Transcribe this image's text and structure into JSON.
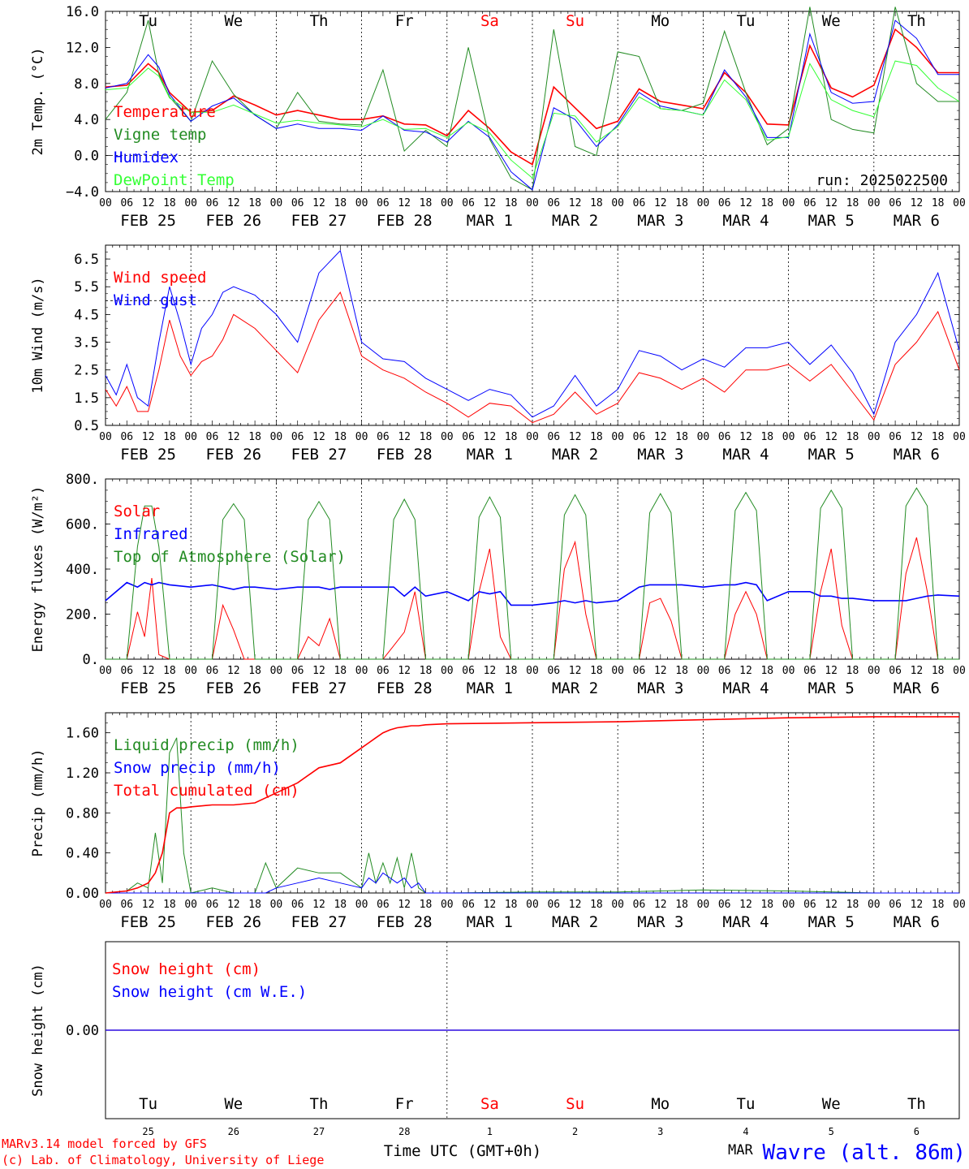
{
  "chart_data": [
    {
      "type": "line",
      "ylabel": "2m Temp. (°C)",
      "ylim": [
        -4,
        16
      ],
      "ytick_labels": [
        "16.0",
        "12.0",
        "8.0",
        "4.0",
        "0.0",
        "−4.0"
      ],
      "ytick_values": [
        16,
        12,
        8,
        4,
        0,
        -4
      ],
      "reference_line": 0,
      "annotation": "run: 2025022500",
      "x_hours": [
        0,
        6,
        12,
        15,
        18,
        24,
        30,
        36,
        42,
        48,
        54,
        60,
        66,
        72,
        78,
        84,
        90,
        96,
        102,
        108,
        114,
        120,
        126,
        132,
        138,
        144,
        150,
        156,
        162,
        168,
        174,
        180,
        186,
        192,
        198,
        204,
        210,
        216,
        222,
        228,
        234,
        240
      ],
      "series": [
        {
          "name": "Temperature",
          "color": "#ff0000",
          "width": 1.6,
          "values": [
            7.6,
            7.8,
            10.2,
            9.2,
            7.0,
            4.8,
            5.0,
            6.6,
            5.6,
            4.5,
            5.0,
            4.5,
            4.0,
            4.0,
            4.4,
            3.5,
            3.4,
            2.2,
            5.0,
            3.0,
            0.4,
            -1.0,
            7.6,
            5.3,
            3.0,
            3.8,
            7.4,
            6.0,
            5.6,
            5.2,
            9.2,
            7.0,
            3.5,
            3.4,
            12.2,
            7.5,
            6.5,
            7.8,
            14.0,
            12.0,
            9.2,
            9.2
          ]
        },
        {
          "name": "Vigne temp",
          "color": "#228b22",
          "width": 1,
          "values": [
            4.0,
            7.0,
            15.0,
            9.0,
            6.5,
            3.8,
            10.5,
            6.8,
            4.5,
            3.0,
            7.0,
            3.8,
            3.5,
            3.4,
            9.5,
            0.5,
            2.8,
            1.0,
            12.0,
            1.8,
            -2.5,
            -3.8,
            14.0,
            1.0,
            0.0,
            11.5,
            11.0,
            5.2,
            5.0,
            5.8,
            13.8,
            7.0,
            1.2,
            3.0,
            16.5,
            4.0,
            2.9,
            2.5,
            16.5,
            8.0,
            6.0,
            6.0
          ]
        },
        {
          "name": "Humidex",
          "color": "#0000ff",
          "width": 1,
          "values": [
            7.5,
            8.0,
            11.2,
            9.8,
            6.8,
            3.8,
            5.5,
            6.4,
            4.5,
            3.0,
            3.5,
            3.0,
            3.0,
            2.8,
            4.4,
            2.8,
            2.6,
            1.5,
            3.8,
            2.0,
            -1.8,
            -3.8,
            5.3,
            4.0,
            1.0,
            3.4,
            7.0,
            5.5,
            5.0,
            4.5,
            9.5,
            6.5,
            2.0,
            2.0,
            13.5,
            7.0,
            5.8,
            6.0,
            15.0,
            13.0,
            9.0,
            9.0
          ]
        },
        {
          "name": "DewPoint Temp",
          "color": "#33ff33",
          "width": 1,
          "values": [
            7.3,
            7.5,
            9.7,
            8.8,
            6.4,
            4.8,
            4.8,
            5.6,
            4.6,
            3.6,
            3.9,
            3.6,
            3.4,
            3.2,
            4.0,
            2.9,
            3.0,
            2.0,
            3.7,
            2.5,
            -0.5,
            -2.5,
            4.7,
            4.4,
            1.5,
            3.2,
            6.5,
            5.2,
            5.0,
            4.5,
            8.4,
            6.2,
            1.7,
            2.1,
            10.2,
            6.2,
            5.0,
            4.3,
            10.5,
            10.0,
            7.5,
            6.0
          ]
        }
      ]
    },
    {
      "type": "line",
      "ylabel": "10m Wind (m/s)",
      "ylim": [
        0.5,
        7.0
      ],
      "ytick_labels": [
        "6.5",
        "5.5",
        "4.5",
        "3.5",
        "2.5",
        "1.5",
        "0.5"
      ],
      "ytick_values": [
        6.5,
        5.5,
        4.5,
        3.5,
        2.5,
        1.5,
        0.5
      ],
      "reference_line": 5.0,
      "x_hours": [
        0,
        3,
        6,
        9,
        12,
        15,
        18,
        21,
        24,
        27,
        30,
        33,
        36,
        42,
        48,
        54,
        60,
        66,
        72,
        78,
        84,
        90,
        96,
        102,
        108,
        114,
        120,
        126,
        132,
        138,
        144,
        150,
        156,
        162,
        168,
        174,
        180,
        186,
        192,
        198,
        204,
        210,
        216,
        222,
        228,
        234,
        240
      ],
      "series": [
        {
          "name": "Wind speed",
          "color": "#ff0000",
          "width": 1,
          "values": [
            1.8,
            1.2,
            1.9,
            1.0,
            1.0,
            2.5,
            4.3,
            3.0,
            2.3,
            2.8,
            3.0,
            3.6,
            4.5,
            4.0,
            3.2,
            2.4,
            4.3,
            5.3,
            3.0,
            2.5,
            2.2,
            1.7,
            1.3,
            0.8,
            1.3,
            1.2,
            0.6,
            0.9,
            1.7,
            0.9,
            1.3,
            2.4,
            2.2,
            1.8,
            2.2,
            1.7,
            2.5,
            2.5,
            2.7,
            2.1,
            2.7,
            1.7,
            0.7,
            2.7,
            3.5,
            4.6,
            2.5
          ]
        },
        {
          "name": "Wind gust",
          "color": "#0000ff",
          "width": 1,
          "values": [
            2.3,
            1.6,
            2.7,
            1.5,
            1.2,
            3.5,
            5.5,
            4.2,
            2.7,
            4.0,
            4.5,
            5.3,
            5.5,
            5.2,
            4.5,
            3.5,
            6.0,
            6.8,
            3.5,
            2.9,
            2.8,
            2.2,
            1.8,
            1.4,
            1.8,
            1.6,
            0.8,
            1.2,
            2.3,
            1.2,
            1.8,
            3.2,
            3.0,
            2.5,
            2.9,
            2.6,
            3.3,
            3.3,
            3.5,
            2.7,
            3.4,
            2.4,
            0.9,
            3.5,
            4.5,
            6.0,
            3.2
          ]
        }
      ]
    },
    {
      "type": "line",
      "ylabel": "Energy fluxes (W/m²)",
      "ylim": [
        0,
        800
      ],
      "ytick_labels": [
        "800.",
        "600.",
        "400.",
        "200.",
        "0."
      ],
      "ytick_values": [
        800,
        600,
        400,
        200,
        0
      ],
      "x_hours": [
        0,
        6,
        9,
        11,
        13,
        15,
        18,
        24,
        30,
        33,
        36,
        39,
        42,
        48,
        54,
        57,
        60,
        63,
        66,
        72,
        78,
        81,
        84,
        87,
        90,
        96,
        102,
        105,
        108,
        111,
        114,
        120,
        126,
        129,
        132,
        135,
        138,
        144,
        150,
        153,
        156,
        159,
        162,
        168,
        174,
        177,
        180,
        183,
        186,
        192,
        198,
        201,
        204,
        207,
        210,
        216,
        222,
        225,
        228,
        231,
        234,
        240
      ],
      "series": [
        {
          "name": "Solar",
          "color": "#ff0000",
          "width": 1,
          "values": [
            0,
            0,
            210,
            100,
            360,
            20,
            0,
            0,
            0,
            240,
            130,
            0,
            0,
            0,
            0,
            100,
            60,
            180,
            0,
            0,
            0,
            60,
            120,
            300,
            0,
            0,
            0,
            300,
            490,
            100,
            0,
            0,
            0,
            400,
            520,
            200,
            0,
            0,
            0,
            250,
            270,
            170,
            0,
            0,
            0,
            200,
            300,
            200,
            0,
            0,
            0,
            300,
            490,
            150,
            0,
            0,
            0,
            380,
            540,
            300,
            0,
            0
          ]
        },
        {
          "name": "Infrared",
          "color": "#0000ff",
          "width": 1.6,
          "values": [
            260,
            340,
            320,
            340,
            330,
            340,
            330,
            320,
            330,
            320,
            310,
            320,
            320,
            310,
            320,
            320,
            320,
            310,
            320,
            320,
            320,
            320,
            280,
            320,
            280,
            300,
            260,
            300,
            290,
            300,
            240,
            240,
            250,
            260,
            250,
            260,
            250,
            260,
            320,
            330,
            330,
            330,
            330,
            320,
            330,
            330,
            340,
            330,
            260,
            300,
            300,
            280,
            280,
            270,
            270,
            260,
            260,
            260,
            270,
            280,
            285,
            280
          ]
        },
        {
          "name": "Top of Atmosphere (Solar)",
          "color": "#228b22",
          "width": 1,
          "values": [
            0,
            0,
            500,
            680,
            680,
            500,
            0,
            0,
            0,
            620,
            690,
            620,
            0,
            0,
            0,
            620,
            700,
            620,
            0,
            0,
            0,
            620,
            710,
            620,
            0,
            0,
            0,
            630,
            720,
            630,
            0,
            0,
            0,
            640,
            730,
            640,
            0,
            0,
            0,
            650,
            735,
            650,
            0,
            0,
            0,
            660,
            740,
            660,
            0,
            0,
            0,
            670,
            750,
            670,
            0,
            0,
            0,
            680,
            760,
            680,
            0,
            0
          ]
        }
      ]
    },
    {
      "type": "line",
      "ylabel": "Precip (mm/h)",
      "ylim": [
        0,
        1.8
      ],
      "ytick_labels": [
        "1.60",
        "1.20",
        "0.80",
        "0.40",
        "0.00"
      ],
      "ytick_values": [
        1.6,
        1.2,
        0.8,
        0.4,
        0.0
      ],
      "x_hours": [
        0,
        6,
        9,
        12,
        14,
        16,
        18,
        20,
        22,
        24,
        30,
        36,
        42,
        45,
        48,
        54,
        60,
        66,
        72,
        74,
        76,
        78,
        80,
        82,
        84,
        86,
        88,
        90,
        96,
        120,
        144,
        168,
        192,
        216,
        240
      ],
      "series": [
        {
          "name": "Liquid precip (mm/h)",
          "color": "#228b22",
          "width": 1,
          "values": [
            0,
            0.02,
            0.1,
            0.05,
            0.6,
            0.1,
            1.4,
            1.55,
            0.4,
            0,
            0.05,
            0,
            0,
            0.3,
            0.05,
            0.25,
            0.2,
            0.2,
            0.05,
            0.4,
            0.1,
            0.3,
            0.1,
            0.35,
            0.05,
            0.4,
            0.05,
            0,
            0,
            0.01,
            0.01,
            0.03,
            0.02,
            0,
            0
          ]
        },
        {
          "name": "Snow precip (mm/h)",
          "color": "#0000ff",
          "width": 1,
          "values": [
            0,
            0,
            0,
            0,
            0,
            0,
            0,
            0,
            0,
            0,
            0,
            0,
            0,
            0,
            0.05,
            0.1,
            0.15,
            0.1,
            0.05,
            0.15,
            0.1,
            0.2,
            0.15,
            0.1,
            0.15,
            0.05,
            0.1,
            0,
            0,
            0,
            0,
            0,
            0,
            0,
            0
          ]
        },
        {
          "name": "Total cumulated (cm)",
          "color": "#ff0000",
          "width": 1.6,
          "values": [
            0,
            0.02,
            0.05,
            0.1,
            0.2,
            0.4,
            0.8,
            0.85,
            0.85,
            0.86,
            0.88,
            0.88,
            0.9,
            0.95,
            1.0,
            1.1,
            1.25,
            1.3,
            1.45,
            1.5,
            1.55,
            1.6,
            1.63,
            1.65,
            1.66,
            1.67,
            1.67,
            1.68,
            1.69,
            1.7,
            1.71,
            1.73,
            1.75,
            1.76,
            1.76
          ]
        }
      ]
    },
    {
      "type": "line",
      "ylabel": "Snow height (cm)",
      "ylim": [
        -1,
        1
      ],
      "ytick_labels": [
        "0.00"
      ],
      "ytick_values": [
        0
      ],
      "x_hours": [
        0,
        240
      ],
      "series": [
        {
          "name": "Snow height (cm)",
          "color": "#ff0000",
          "width": 1.2,
          "values": [
            0,
            0
          ]
        },
        {
          "name": "Snow height (cm W.E.)",
          "color": "#0000ff",
          "width": 1.2,
          "values": [
            0,
            0
          ]
        }
      ]
    }
  ],
  "time_axis": {
    "hour_labels": [
      "00",
      "06",
      "12",
      "18"
    ],
    "end_label": "00",
    "date_labels": [
      "FEB 25",
      "FEB 26",
      "FEB 27",
      "FEB 28",
      "MAR  1",
      "MAR  2",
      "MAR  3",
      "MAR  4",
      "MAR  5",
      "MAR  6"
    ],
    "weekdays": [
      "Tu",
      "We",
      "Th",
      "Fr",
      "Sa",
      "Su",
      "Mo",
      "Tu",
      "We",
      "Th"
    ],
    "weekend_color": "#ff0000",
    "weekday_color": "#000000",
    "bottom_day_numbers": [
      "25",
      "26",
      "27",
      "28",
      "1",
      "2",
      "3",
      "4",
      "5",
      "6"
    ],
    "month_label": "MAR",
    "dotted_divider_day": 4
  },
  "footer": {
    "credit_line1": "MARv3.14 model forced by GFS",
    "credit_line2": "(c) Lab. of Climatology, University of Liege",
    "xlabel": "Time UTC (GMT+0h)",
    "station": "Wavre (alt. 86m)",
    "credit_color": "#ff0000",
    "station_color": "#0000ff"
  }
}
